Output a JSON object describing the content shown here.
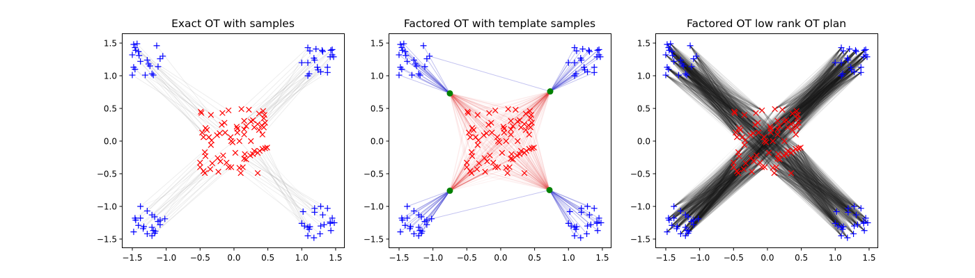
{
  "chart_data": {
    "type": "scatter",
    "xlim": [
      -1.654,
      1.624
    ],
    "ylim": [
      -1.628,
      1.649
    ],
    "xticks": [
      -1.5,
      -1.0,
      -0.5,
      0.0,
      0.5,
      1.0,
      1.5
    ],
    "yticks": [
      -1.5,
      -1.0,
      -0.5,
      0.0,
      0.5,
      1.0,
      1.5
    ],
    "tick_labels": [
      "−1.5",
      "−1.0",
      "−0.5",
      "0.0",
      "0.5",
      "1.0",
      "1.5"
    ],
    "colors": {
      "source": "#0000ff",
      "target": "#ff0000",
      "template": "#008000",
      "exact_plan": "#999999",
      "template_source_links": "#3333cc",
      "template_target_links": "#dd3333",
      "low_rank_plan": "#222222"
    },
    "markers": {
      "source": "+",
      "target": "x",
      "template": "o"
    },
    "source_points": [
      [
        -1.48,
        1.48
      ],
      [
        -1.43,
        1.49
      ],
      [
        -1.46,
        1.43
      ],
      [
        -1.45,
        1.39
      ],
      [
        -1.41,
        1.37
      ],
      [
        -1.5,
        1.32
      ],
      [
        -1.4,
        1.31
      ],
      [
        -1.28,
        1.24
      ],
      [
        -1.38,
        1.22
      ],
      [
        -1.48,
        1.13
      ],
      [
        -1.46,
        1.1
      ],
      [
        -1.26,
        1.18
      ],
      [
        -1.24,
        1.15
      ],
      [
        -1.31,
        1.01
      ],
      [
        -1.21,
        1.03
      ],
      [
        -1.19,
        1.01
      ],
      [
        -1.5,
        1.01
      ],
      [
        -1.14,
        1.46
      ],
      [
        -1.12,
        1.14
      ],
      [
        -1.09,
        1.26
      ],
      [
        -1.05,
        1.3
      ],
      [
        1.09,
        1.43
      ],
      [
        1.12,
        1.38
      ],
      [
        1.21,
        1.41
      ],
      [
        1.3,
        1.39
      ],
      [
        1.31,
        1.37
      ],
      [
        1.43,
        1.39
      ],
      [
        1.45,
        1.4
      ],
      [
        1.0,
        1.2
      ],
      [
        1.09,
        1.2
      ],
      [
        1.18,
        1.27
      ],
      [
        1.19,
        1.24
      ],
      [
        1.23,
        1.13
      ],
      [
        1.24,
        1.09
      ],
      [
        1.28,
        1.06
      ],
      [
        1.38,
        1.05
      ],
      [
        1.38,
        1.13
      ],
      [
        1.11,
        1.03
      ],
      [
        1.09,
        1.0
      ],
      [
        1.47,
        1.29
      ],
      [
        1.42,
        1.29
      ],
      [
        1.45,
        1.32
      ],
      [
        -1.38,
        -1.0
      ],
      [
        -1.46,
        -1.18
      ],
      [
        -1.45,
        -1.21
      ],
      [
        -1.38,
        -1.18
      ],
      [
        -1.28,
        -1.07
      ],
      [
        -1.21,
        -1.13
      ],
      [
        -1.17,
        -1.16
      ],
      [
        -1.41,
        -1.29
      ],
      [
        -1.33,
        -1.31
      ],
      [
        -1.34,
        -1.34
      ],
      [
        -1.48,
        -1.39
      ],
      [
        -1.28,
        -1.42
      ],
      [
        -1.21,
        -1.32
      ],
      [
        -1.19,
        -1.37
      ],
      [
        -1.16,
        -1.38
      ],
      [
        -1.21,
        -1.45
      ],
      [
        -1.17,
        -1.41
      ],
      [
        -1.09,
        -1.21
      ],
      [
        -1.09,
        -1.28
      ],
      [
        -1.02,
        -1.19
      ],
      [
        -1.12,
        -1.23
      ],
      [
        1.02,
        -1.08
      ],
      [
        1.0,
        -1.26
      ],
      [
        1.04,
        -1.3
      ],
      [
        1.09,
        -1.32
      ],
      [
        1.12,
        -1.31
      ],
      [
        1.11,
        -1.35
      ],
      [
        1.09,
        -1.45
      ],
      [
        1.18,
        -1.48
      ],
      [
        1.19,
        -1.03
      ],
      [
        1.19,
        -1.09
      ],
      [
        1.28,
        -1.0
      ],
      [
        1.31,
        -1.13
      ],
      [
        1.38,
        -1.03
      ],
      [
        1.28,
        -1.3
      ],
      [
        1.33,
        -1.28
      ],
      [
        1.27,
        -1.42
      ],
      [
        1.42,
        -1.26
      ],
      [
        1.45,
        -1.18
      ],
      [
        1.48,
        -1.25
      ],
      [
        1.43,
        -1.37
      ],
      [
        1.42,
        -1.24
      ]
    ],
    "target_points": [
      [
        -0.49,
        0.45
      ],
      [
        -0.48,
        0.43
      ],
      [
        -0.34,
        0.4
      ],
      [
        -0.17,
        0.43
      ],
      [
        -0.08,
        0.47
      ],
      [
        0.11,
        0.49
      ],
      [
        0.22,
        0.48
      ],
      [
        0.37,
        0.42
      ],
      [
        0.43,
        0.46
      ],
      [
        0.45,
        0.4
      ],
      [
        0.44,
        0.35
      ],
      [
        -0.42,
        0.2
      ],
      [
        -0.4,
        0.17
      ],
      [
        -0.47,
        0.13
      ],
      [
        -0.45,
        0.06
      ],
      [
        -0.37,
        0.06
      ],
      [
        -0.33,
        0.01
      ],
      [
        -0.34,
        -0.06
      ],
      [
        -0.25,
        0.09
      ],
      [
        -0.21,
        0.12
      ],
      [
        -0.18,
        0.25
      ],
      [
        -0.14,
        0.28
      ],
      [
        -0.13,
        0.13
      ],
      [
        -0.05,
        0.06
      ],
      [
        -0.04,
        0.0
      ],
      [
        -0.02,
        -0.02
      ],
      [
        0.04,
        0.22
      ],
      [
        0.05,
        0.19
      ],
      [
        0.05,
        0.13
      ],
      [
        0.08,
        0.0
      ],
      [
        0.15,
        0.18
      ],
      [
        0.15,
        0.1
      ],
      [
        0.15,
        0.31
      ],
      [
        0.18,
        0.23
      ],
      [
        0.25,
        0.3
      ],
      [
        0.28,
        0.32
      ],
      [
        0.25,
        0.0
      ],
      [
        0.3,
        0.21
      ],
      [
        0.35,
        0.26
      ],
      [
        0.37,
        0.17
      ],
      [
        0.41,
        0.24
      ],
      [
        0.44,
        0.21
      ],
      [
        0.42,
        0.1
      ],
      [
        0.46,
        0.28
      ],
      [
        0.49,
        -0.1
      ],
      [
        0.46,
        -0.11
      ],
      [
        0.42,
        -0.12
      ],
      [
        0.38,
        -0.15
      ],
      [
        0.35,
        -0.18
      ],
      [
        0.3,
        -0.15
      ],
      [
        0.28,
        -0.2
      ],
      [
        0.24,
        -0.22
      ],
      [
        0.18,
        -0.28
      ],
      [
        0.16,
        -0.2
      ],
      [
        0.15,
        -0.27
      ],
      [
        -0.43,
        -0.17
      ],
      [
        -0.42,
        -0.23
      ],
      [
        -0.5,
        -0.33
      ],
      [
        -0.5,
        -0.4
      ],
      [
        -0.45,
        -0.46
      ],
      [
        -0.43,
        -0.49
      ],
      [
        -0.35,
        -0.43
      ],
      [
        -0.32,
        -0.34
      ],
      [
        -0.24,
        -0.26
      ],
      [
        -0.23,
        -0.47
      ],
      [
        -0.2,
        -0.31
      ],
      [
        -0.16,
        -0.22
      ],
      [
        -0.11,
        -0.33
      ],
      [
        -0.08,
        -0.4
      ],
      [
        -0.04,
        -0.4
      ],
      [
        0.02,
        -0.18
      ],
      [
        0.08,
        -0.41
      ],
      [
        0.1,
        -0.49
      ],
      [
        0.13,
        -0.4
      ],
      [
        0.35,
        -0.49
      ]
    ],
    "template_points": [
      [
        -0.75,
        0.73
      ],
      [
        0.73,
        0.76
      ],
      [
        -0.75,
        -0.76
      ],
      [
        0.72,
        -0.75
      ]
    ],
    "panels": [
      {
        "title": "Exact OT with samples",
        "plan": "exact"
      },
      {
        "title": "Factored OT with template samples",
        "plan": "factored"
      },
      {
        "title": "Factored OT low rank OT plan",
        "plan": "low_rank"
      }
    ]
  }
}
